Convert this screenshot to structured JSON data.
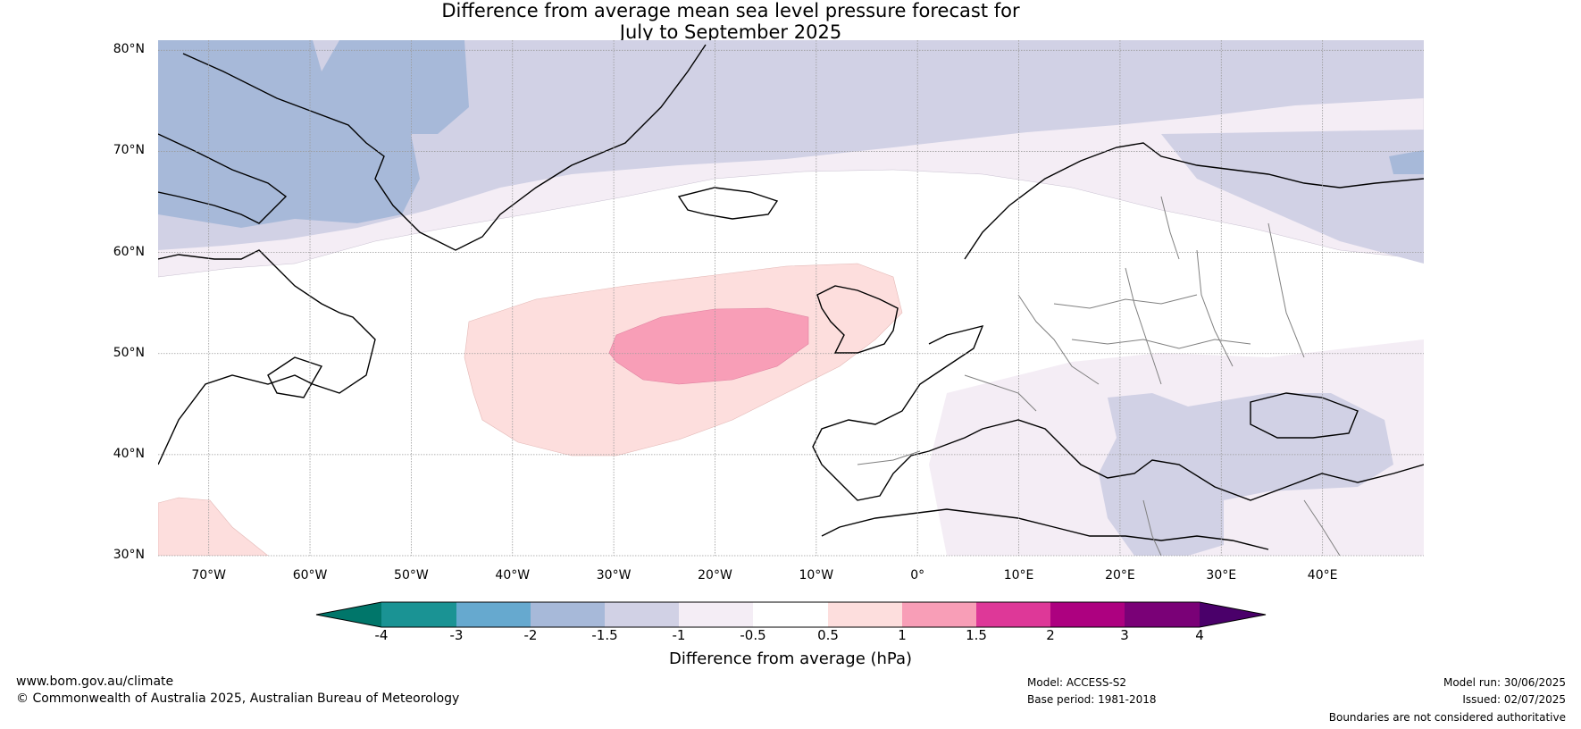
{
  "title_line1": "Difference from average mean sea level pressure forecast for",
  "title_line2": "July to September 2025",
  "lat_labels": [
    "80°N",
    "70°N",
    "60°N",
    "50°N",
    "40°N",
    "30°N"
  ],
  "lon_labels": [
    "70°W",
    "60°W",
    "50°W",
    "40°W",
    "30°W",
    "20°W",
    "10°W",
    "0°",
    "10°E",
    "20°E",
    "30°E",
    "40°E"
  ],
  "colorbar": {
    "title": "Difference from average (hPa)",
    "tick_labels": [
      "-4",
      "-3",
      "-2",
      "-1.5",
      "-1",
      "-0.5",
      "0.5",
      "1",
      "1.5",
      "2",
      "3",
      "4"
    ],
    "colors": [
      "#00766a",
      "#1a9394",
      "#66a9cf",
      "#a7b9d9",
      "#d1d1e5",
      "#f4edf5",
      "#ffffff",
      "#fddedd",
      "#f89eb7",
      "#de3898",
      "#ad0180",
      "#7a0177",
      "#4a006a"
    ]
  },
  "map_colors": {
    "ocean": "#ffffff",
    "neg_1_5_to_neg_1": "#d1d1e5",
    "neg_2_to_neg_1_5": "#a7b9d9",
    "neg_1_to_neg_0_5": "#f4edf5",
    "pos_0_5_to_1": "#fddedd",
    "pos_1_to_1_5": "#f89eb7",
    "coast": "#000000",
    "border": "#808080",
    "grid": "#9a9a9a"
  },
  "footer": {
    "website": "www.bom.gov.au/climate",
    "copyright": "© Commonwealth of Australia 2025, Australian Bureau of Meteorology",
    "model": "Model: ACCESS-S2",
    "base_period": "Base period: 1981-2018",
    "model_run": "Model run: 30/06/2025",
    "issued": "Issued: 02/07/2025",
    "disclaimer": "Boundaries are not considered authoritative"
  }
}
